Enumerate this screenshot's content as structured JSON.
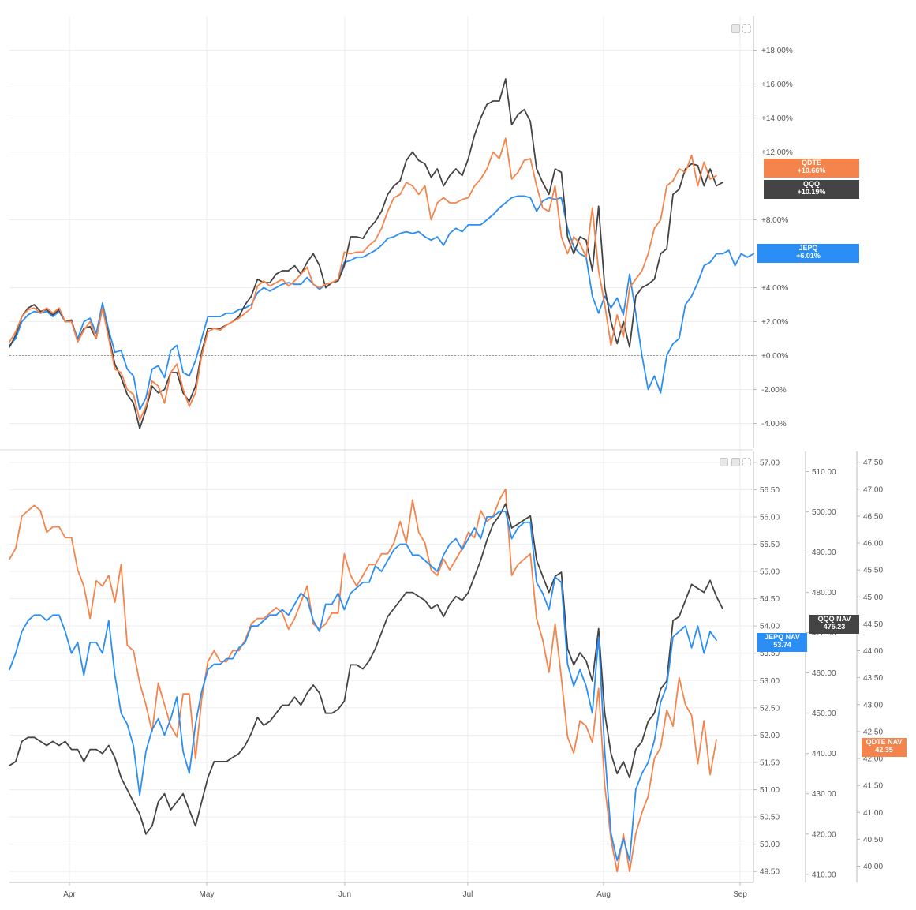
{
  "chart_data": [
    {
      "type": "line",
      "panel": "top",
      "y_unit": "percent",
      "ylim": [
        -5,
        20
      ],
      "yticks": [
        "+18.00%",
        "+16.00%",
        "+14.00%",
        "+12.00%",
        "+8.00%",
        "+4.00%",
        "+2.00%",
        "+0.00%",
        "-2.00%",
        "-4.00%"
      ],
      "ytick_values": [
        18,
        16,
        14,
        12,
        8,
        4,
        2,
        0,
        -2,
        -4
      ],
      "zero_line": true,
      "series": [
        {
          "name": "QDTE",
          "color": "#f5844c",
          "last_label": "+10.66%",
          "values": [
            0.8,
            1.4,
            2.3,
            2.7,
            2.8,
            2.5,
            2.8,
            2.5,
            2.8,
            2.0,
            2.0,
            0.8,
            1.5,
            2.0,
            1.0,
            2.8,
            1.0,
            -0.8,
            -1.0,
            -2.0,
            -2.3,
            -3.8,
            -3.0,
            -1.5,
            -1.8,
            -2.8,
            -1.0,
            -0.5,
            -2.0,
            -3.0,
            -2.2,
            0.0,
            1.4,
            1.6,
            1.5,
            1.8,
            2.0,
            2.2,
            2.5,
            2.8,
            4.1,
            4.4,
            4.1,
            4.3,
            4.5,
            4.1,
            4.4,
            4.8,
            5.2,
            4.2,
            4.0,
            4.2,
            4.3,
            4.5,
            6.1,
            6.0,
            6.1,
            6.1,
            6.5,
            6.8,
            7.5,
            8.5,
            9.3,
            9.5,
            10.2,
            10.0,
            9.5,
            10.0,
            8.0,
            9.0,
            9.3,
            9.0,
            9.0,
            9.2,
            9.3,
            10.0,
            10.4,
            11.0,
            12.0,
            11.6,
            12.8,
            10.4,
            10.8,
            11.5,
            11.6,
            10.0,
            8.7,
            8.5,
            10.0,
            7.0,
            6.0,
            7.0,
            6.6,
            5.8,
            8.7,
            5.0,
            3.0,
            0.6,
            2.4,
            1.1,
            4.0,
            4.5,
            5.0,
            6.0,
            7.5,
            8.0,
            10.0,
            10.3,
            11.0,
            10.8,
            11.8,
            10.0,
            11.4,
            10.4,
            10.6
          ]
        },
        {
          "name": "QQQ",
          "color": "#444444",
          "last_label": "+10.19%",
          "values": [
            0.5,
            1.2,
            2.3,
            2.8,
            3.0,
            2.6,
            2.7,
            2.4,
            2.7,
            2.0,
            2.1,
            0.8,
            1.6,
            1.7,
            1.0,
            2.8,
            1.2,
            -0.5,
            -1.3,
            -2.3,
            -2.8,
            -4.3,
            -3.2,
            -1.8,
            -2.2,
            -2.0,
            -1.0,
            -1.0,
            -2.2,
            -2.7,
            -1.8,
            0.2,
            1.6,
            1.6,
            1.6,
            1.8,
            2.0,
            2.3,
            3.0,
            3.5,
            4.5,
            4.3,
            4.3,
            4.8,
            5.0,
            5.0,
            5.3,
            4.8,
            5.5,
            6.0,
            5.3,
            4.0,
            4.3,
            4.4,
            5.3,
            7.0,
            7.0,
            6.9,
            7.5,
            7.9,
            8.5,
            9.5,
            10.0,
            10.3,
            11.5,
            12.0,
            11.5,
            11.3,
            10.5,
            11.0,
            10.0,
            10.6,
            11.0,
            10.6,
            11.6,
            13.0,
            14.0,
            14.8,
            15.0,
            15.0,
            16.3,
            13.6,
            14.2,
            14.5,
            13.8,
            11.0,
            10.2,
            9.5,
            11.0,
            10.8,
            7.0,
            6.0,
            7.0,
            6.8,
            5.0,
            8.8,
            4.0,
            2.0,
            0.7,
            2.0,
            0.5,
            3.5,
            4.0,
            4.2,
            4.5,
            6.0,
            6.3,
            9.5,
            9.8,
            11.0,
            11.3,
            11.2,
            10.0,
            11.0,
            10.0,
            10.2
          ]
        },
        {
          "name": "JEPQ",
          "color": "#2b8ef5",
          "last_label": "+6.01%",
          "values": [
            0.6,
            1.0,
            2.0,
            2.4,
            2.6,
            2.5,
            2.6,
            2.3,
            2.6,
            2.0,
            2.0,
            1.0,
            2.0,
            2.2,
            1.3,
            3.1,
            1.5,
            0.2,
            0.3,
            -0.8,
            -1.2,
            -3.2,
            -2.5,
            -0.8,
            -0.6,
            -1.3,
            0.3,
            0.6,
            -1.0,
            -1.2,
            -0.3,
            1.0,
            2.3,
            2.3,
            2.3,
            2.5,
            2.5,
            2.7,
            2.8,
            3.0,
            3.7,
            4.0,
            3.8,
            4.0,
            4.2,
            4.3,
            4.2,
            4.2,
            4.6,
            4.2,
            3.9,
            4.2,
            4.3,
            4.4,
            5.5,
            5.6,
            5.8,
            5.8,
            6.0,
            6.2,
            6.5,
            6.9,
            7.0,
            7.2,
            7.3,
            7.2,
            7.3,
            7.0,
            6.8,
            7.0,
            6.5,
            7.2,
            7.5,
            7.3,
            7.7,
            7.7,
            7.7,
            8.0,
            8.3,
            8.7,
            9.0,
            9.3,
            9.4,
            9.4,
            9.3,
            8.5,
            9.1,
            9.3,
            9.2,
            9.3,
            7.5,
            6.4,
            6.0,
            5.8,
            3.5,
            2.5,
            3.5,
            2.8,
            3.4,
            2.4,
            4.8,
            2.5,
            0.0,
            -2.0,
            -1.2,
            -2.2,
            0.0,
            0.7,
            1.0,
            3.0,
            3.5,
            4.3,
            5.3,
            5.5,
            6.0,
            6.0,
            6.2,
            5.3,
            6.0,
            5.8,
            6.0
          ]
        }
      ]
    },
    {
      "type": "line",
      "panel": "bottom",
      "axes": [
        {
          "id": "jepq",
          "side": "right-1",
          "range": [
            49.3,
            57.2
          ],
          "ticks": [
            "57.00",
            "56.50",
            "56.00",
            "55.50",
            "55.00",
            "54.50",
            "54.00",
            "53.50",
            "53.00",
            "52.50",
            "52.00",
            "51.50",
            "51.00",
            "50.50",
            "50.00",
            "49.50"
          ],
          "tick_values": [
            57,
            56.5,
            56,
            55.5,
            55,
            54.5,
            54,
            53.5,
            53,
            52.5,
            52,
            51.5,
            51,
            50.5,
            50,
            49.5
          ]
        },
        {
          "id": "qqq",
          "side": "right-2",
          "range": [
            408,
            515
          ],
          "ticks": [
            "510.00",
            "500.00",
            "490.00",
            "480.00",
            "470.00",
            "460.00",
            "450.00",
            "440.00",
            "430.00",
            "420.00",
            "410.00"
          ],
          "tick_values": [
            510,
            500,
            490,
            480,
            470,
            460,
            450,
            440,
            430,
            420,
            410
          ]
        },
        {
          "id": "qdte",
          "side": "right-3",
          "range": [
            39.7,
            47.7
          ],
          "ticks": [
            "47.50",
            "47.00",
            "46.50",
            "46.00",
            "45.50",
            "45.00",
            "44.50",
            "44.00",
            "43.50",
            "43.00",
            "42.50",
            "42.00",
            "41.50",
            "41.00",
            "40.50",
            "40.00"
          ],
          "tick_values": [
            47.5,
            47,
            46.5,
            46,
            45.5,
            45,
            44.5,
            44,
            43.5,
            43,
            42.5,
            42,
            41.5,
            41,
            40.5,
            40
          ]
        }
      ],
      "series": [
        {
          "name": "QDTE NAV",
          "axis": "qdte",
          "color": "#f5844c",
          "last_label": "42.35",
          "values": [
            45.7,
            45.9,
            46.5,
            46.6,
            46.7,
            46.6,
            46.2,
            46.3,
            46.3,
            46.1,
            46.1,
            45.5,
            45.2,
            44.6,
            45.3,
            45.2,
            45.4,
            44.9,
            45.6,
            44.1,
            44.0,
            43.4,
            43.0,
            42.5,
            43.4,
            43.0,
            42.6,
            42.4,
            43.2,
            43.2,
            42.0,
            43.1,
            43.8,
            44.0,
            43.8,
            43.8,
            44.0,
            44.0,
            44.2,
            44.5,
            44.6,
            44.6,
            44.7,
            44.8,
            44.7,
            44.4,
            44.6,
            44.9,
            45.2,
            44.5,
            44.4,
            44.5,
            44.7,
            44.7,
            45.8,
            45.4,
            45.2,
            45.4,
            45.6,
            45.6,
            45.8,
            45.8,
            46.0,
            46.4,
            46.0,
            46.8,
            46.2,
            46.0,
            45.5,
            45.4,
            45.7,
            45.5,
            45.7,
            45.9,
            46.2,
            46.1,
            46.6,
            46.4,
            46.5,
            46.8,
            47.0,
            45.4,
            45.6,
            45.7,
            45.8,
            44.6,
            44.2,
            43.6,
            44.5,
            43.5,
            42.4,
            42.1,
            42.7,
            42.6,
            42.3,
            43.3,
            41.5,
            40.5,
            39.9,
            40.6,
            39.9,
            40.6,
            41.0,
            41.3,
            42.0,
            42.2,
            42.9,
            42.6,
            43.5,
            43.0,
            42.8,
            41.9,
            42.7,
            41.7,
            42.35
          ]
        },
        {
          "name": "QQQ NAV",
          "axis": "qqq",
          "color": "#444444",
          "last_label": "475.23",
          "values": [
            437,
            438,
            443,
            444,
            444,
            443,
            442,
            443,
            442,
            443,
            441,
            441,
            438,
            441,
            441,
            440,
            442,
            439,
            434,
            431,
            428,
            425,
            420,
            422,
            428,
            430,
            426,
            428,
            430,
            426,
            422,
            428,
            434,
            438,
            438,
            438,
            439,
            440,
            442,
            445,
            449,
            447,
            448,
            450,
            452,
            452,
            454,
            452,
            455,
            457,
            455,
            450,
            450,
            451,
            453,
            462,
            462,
            461,
            463,
            466,
            470,
            474,
            476,
            478,
            480,
            480,
            479,
            478,
            476,
            477,
            474,
            477,
            479,
            478,
            480,
            484,
            488,
            493,
            497,
            499,
            502,
            496,
            497,
            498,
            499,
            488,
            484,
            480,
            484,
            485,
            466,
            462,
            465,
            463,
            458,
            471,
            450,
            440,
            435,
            438,
            434,
            441,
            443,
            448,
            450,
            456,
            458,
            473,
            474,
            478,
            482,
            481,
            480,
            483,
            479,
            476
          ]
        },
        {
          "name": "JEPQ NAV",
          "axis": "jepq",
          "color": "#2b8ef5",
          "last_label": "53.74",
          "values": [
            53.2,
            53.5,
            53.9,
            54.1,
            54.2,
            54.2,
            54.1,
            54.2,
            54.2,
            53.9,
            53.5,
            53.7,
            53.1,
            53.7,
            53.7,
            53.5,
            54.1,
            53.1,
            52.4,
            52.2,
            51.8,
            50.9,
            51.7,
            52.1,
            52.3,
            52.0,
            52.3,
            52.7,
            51.7,
            51.3,
            52.2,
            52.8,
            53.2,
            53.3,
            53.3,
            53.4,
            53.4,
            53.6,
            53.7,
            54.0,
            54.0,
            54.1,
            54.2,
            54.2,
            54.3,
            54.2,
            54.4,
            54.6,
            54.5,
            54.1,
            53.9,
            54.4,
            54.4,
            54.6,
            54.3,
            54.6,
            54.7,
            54.8,
            54.8,
            55.1,
            55.0,
            55.2,
            55.4,
            55.5,
            55.5,
            55.3,
            55.3,
            55.2,
            55.1,
            55.0,
            55.3,
            55.5,
            55.6,
            55.4,
            55.6,
            55.8,
            55.6,
            56.0,
            56.0,
            56.1,
            56.1,
            55.6,
            55.8,
            55.9,
            55.9,
            54.8,
            54.6,
            54.3,
            54.9,
            54.8,
            53.3,
            52.9,
            53.2,
            52.9,
            52.4,
            53.8,
            51.7,
            50.2,
            49.7,
            50.1,
            49.7,
            51.0,
            51.3,
            51.5,
            51.9,
            52.6,
            52.9,
            53.8,
            53.9,
            54.0,
            53.6,
            54.0,
            53.5,
            53.9,
            53.74
          ]
        }
      ]
    }
  ],
  "x_axis": {
    "months": [
      "Apr",
      "May",
      "Jun",
      "Jul",
      "Aug",
      "Sep"
    ]
  }
}
